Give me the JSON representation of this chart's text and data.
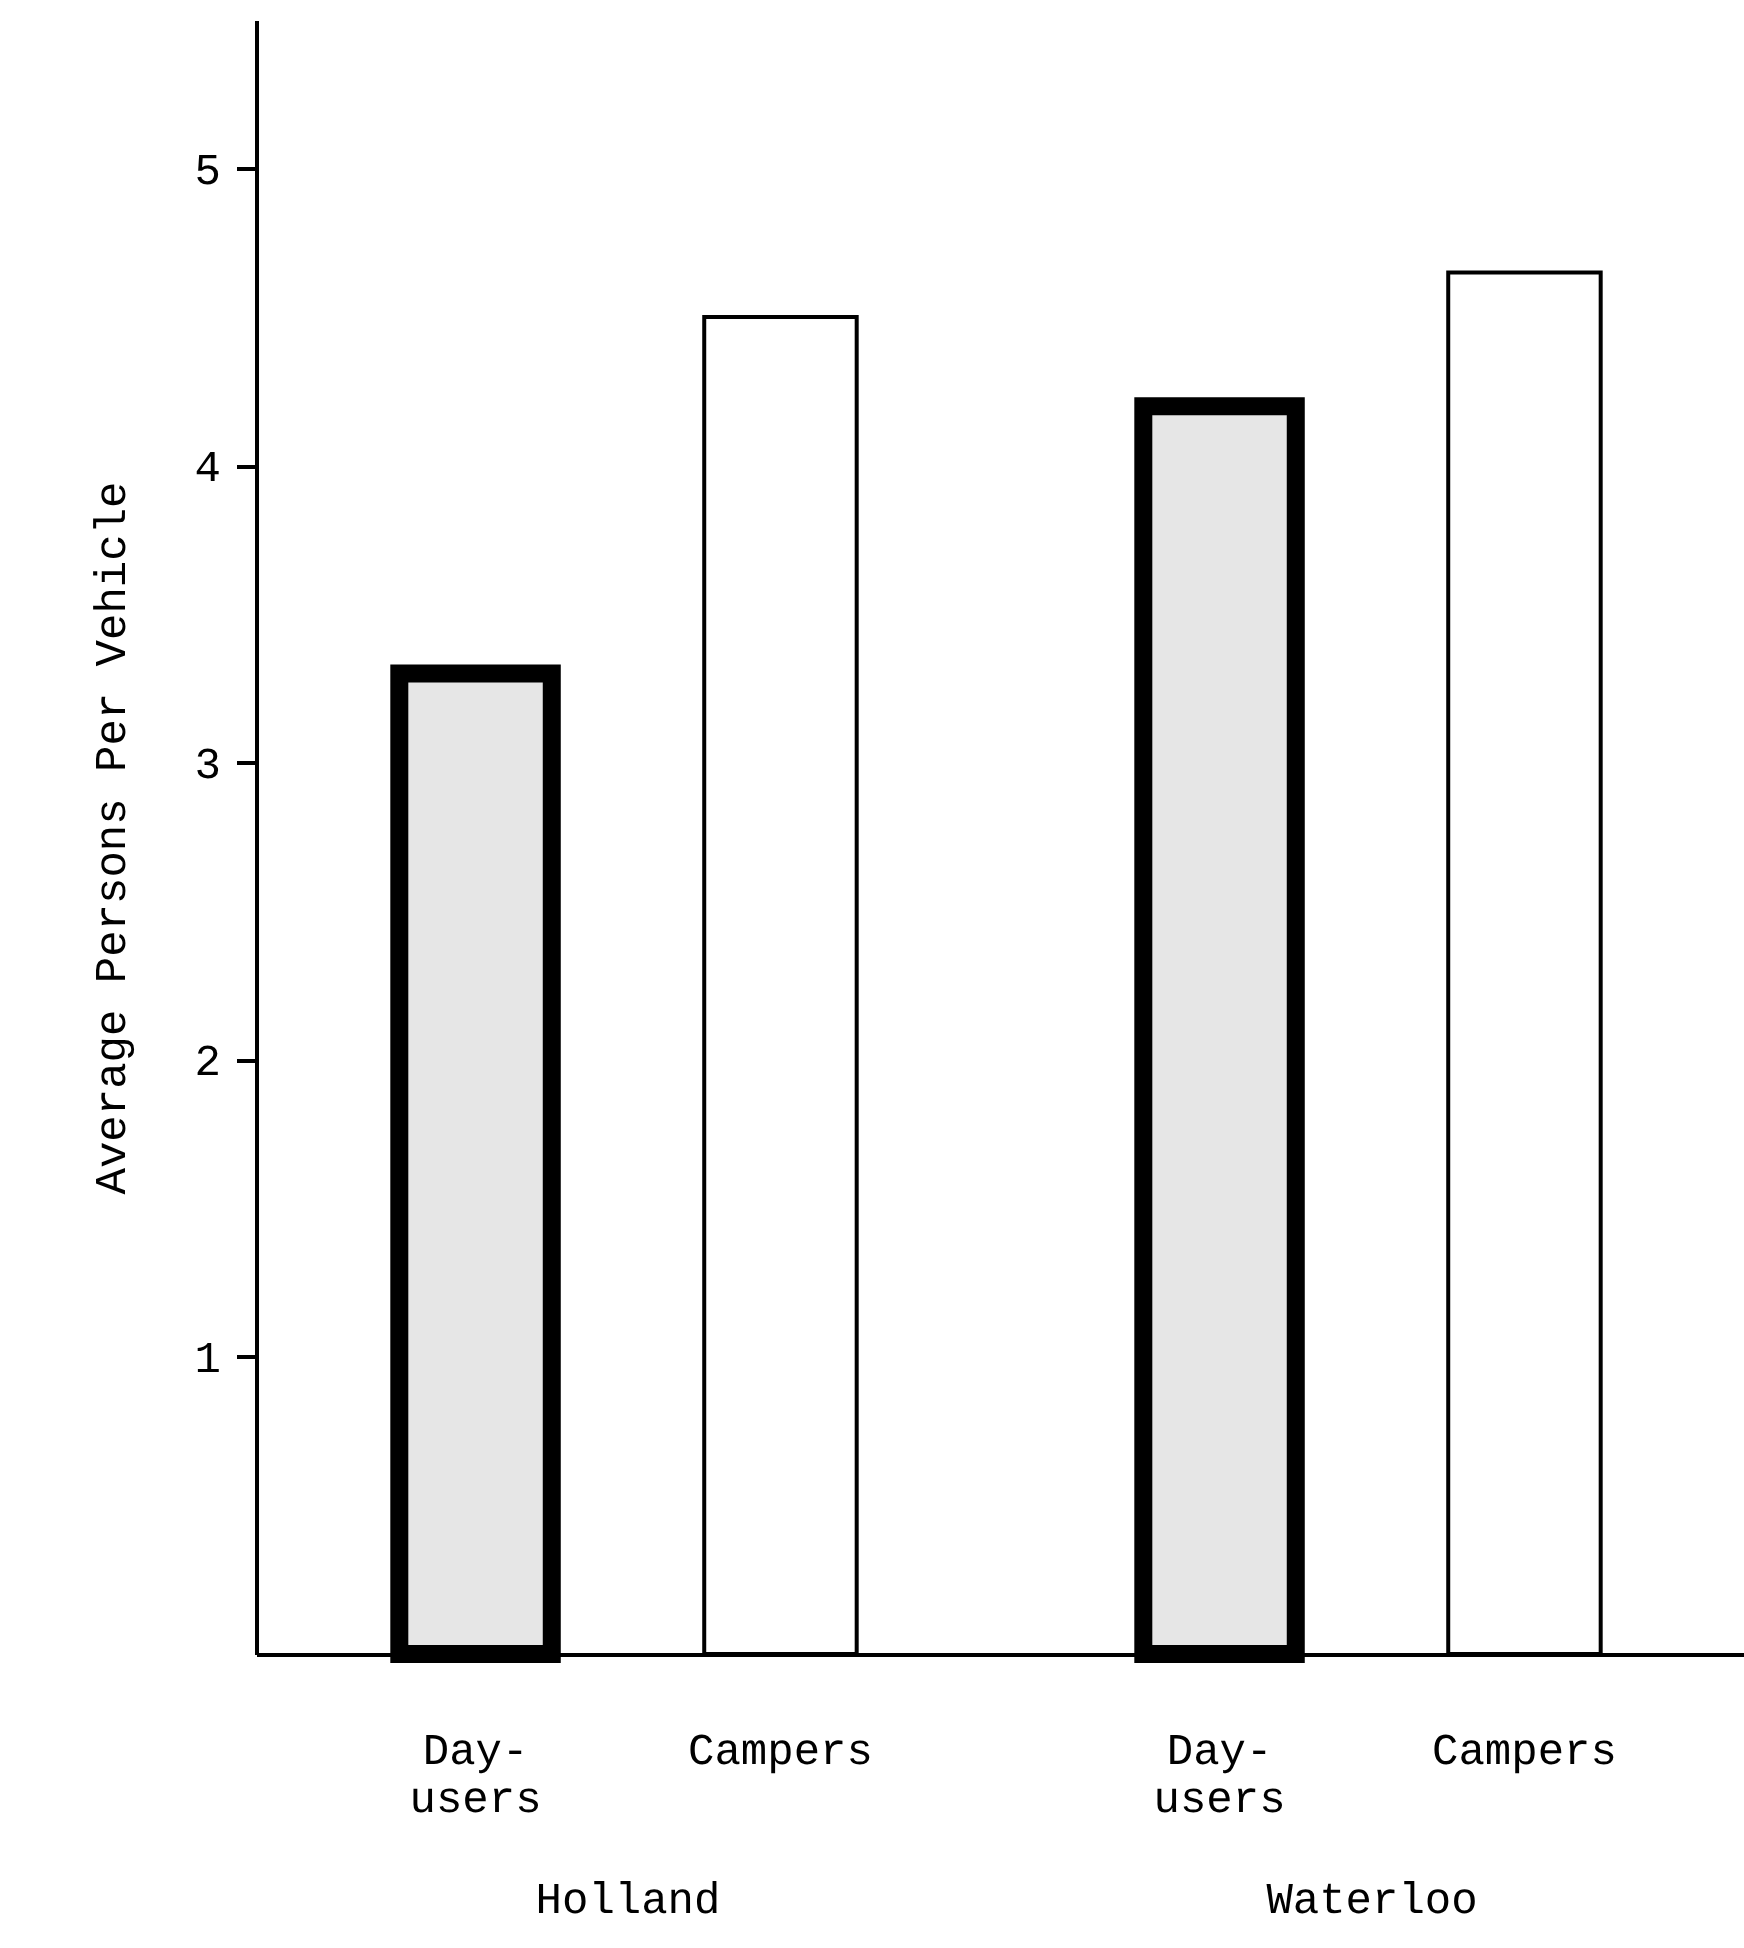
{
  "chart_data": {
    "type": "bar",
    "ylabel": "Average Persons Per Vehicle",
    "categories": [
      "Holland",
      "Waterloo"
    ],
    "series": [
      {
        "name": "Day-users",
        "color": "#e6e6e6",
        "values": [
          3.3,
          4.2
        ]
      },
      {
        "name": "Campers",
        "color": "#ffffff",
        "values": [
          4.5,
          4.65
        ]
      }
    ],
    "ylim": [
      0,
      5.5
    ],
    "yticks": [
      1,
      2,
      3,
      4,
      5
    ],
    "grid": false,
    "legend": false
  }
}
